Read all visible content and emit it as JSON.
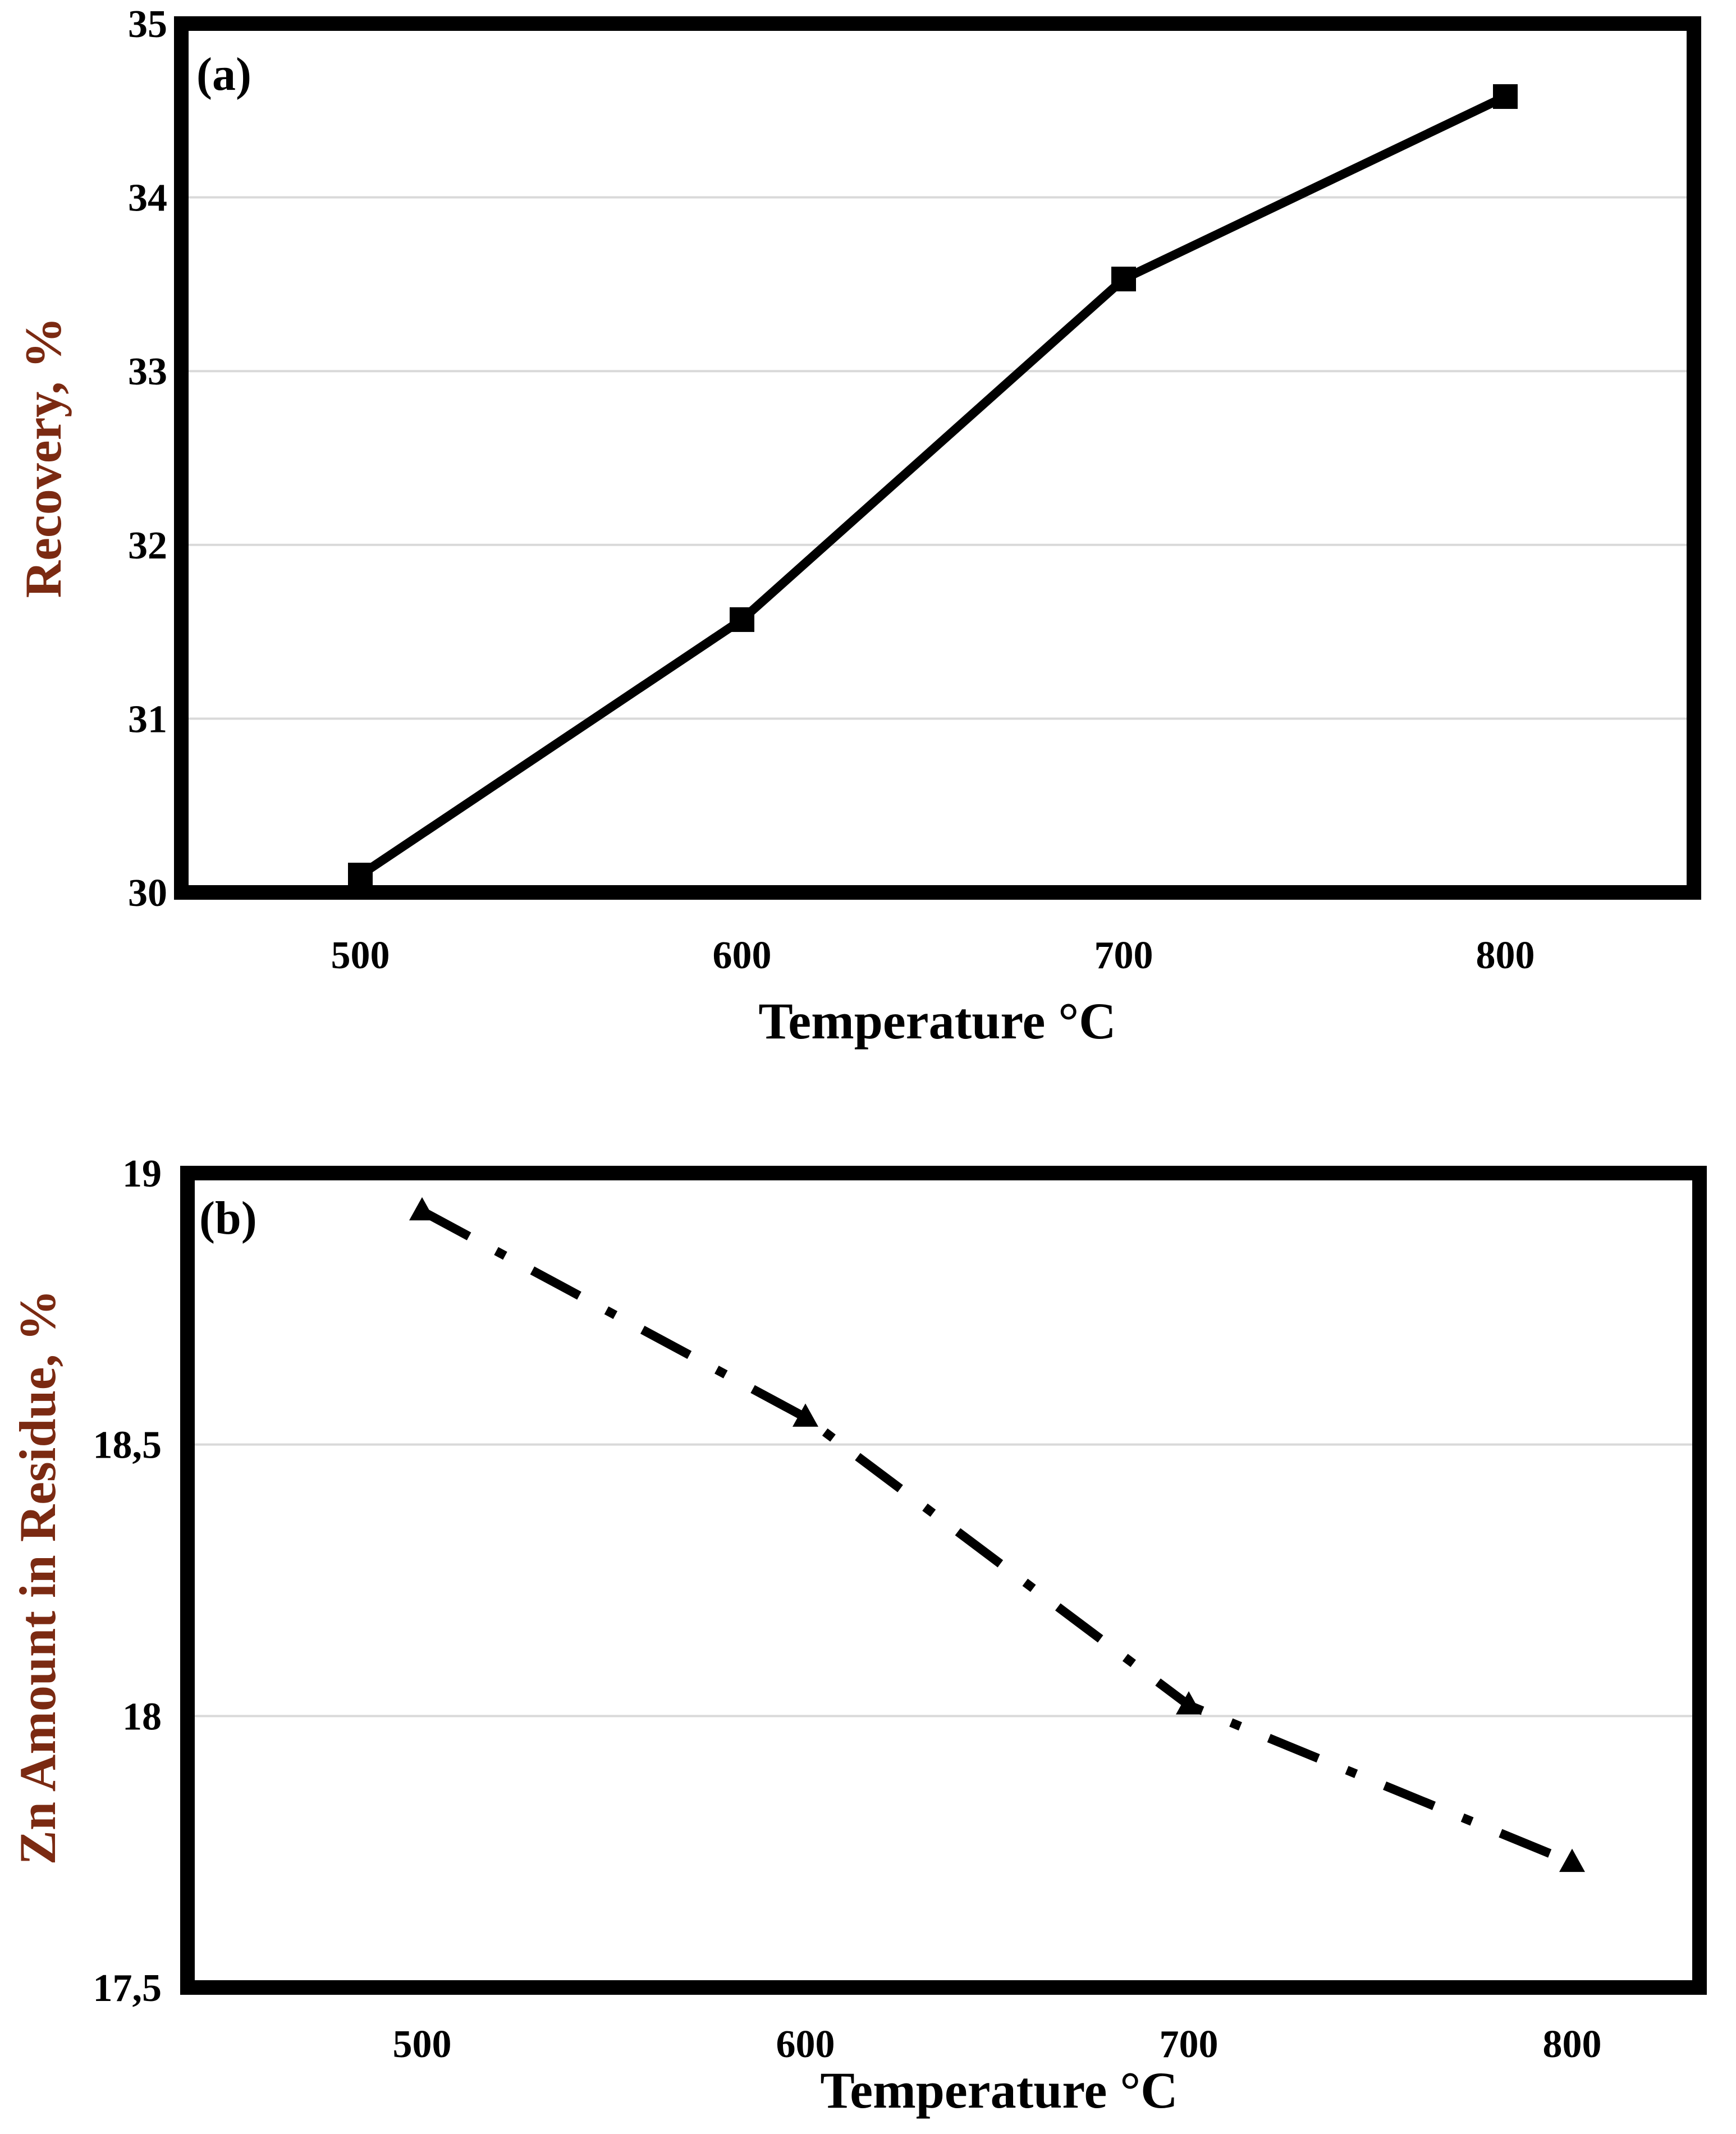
{
  "chart_data": [
    {
      "type": "line",
      "panel_label": "(a)",
      "title": "",
      "xlabel": "Temperature °C",
      "ylabel": "Recovery, %",
      "x": [
        500,
        600,
        700,
        800
      ],
      "categories": [
        "500",
        "600",
        "700",
        "800"
      ],
      "series": [
        {
          "name": "Recovery",
          "values": [
            30.1,
            31.57,
            33.53,
            34.58
          ],
          "marker": "square",
          "line_style": "solid"
        }
      ],
      "ylim": [
        30,
        35
      ],
      "yticks": [
        "30",
        "31",
        "32",
        "33",
        "34",
        "35"
      ],
      "grid": true,
      "colors": {
        "axis_label": "#7b2a12",
        "line": "#000000",
        "grid": "#d9d9d9"
      }
    },
    {
      "type": "line",
      "panel_label": "(b)",
      "title": "",
      "xlabel": "Temperature °C",
      "ylabel": "Zn Amount in Residue, %",
      "x": [
        500,
        600,
        700,
        800
      ],
      "categories": [
        "500",
        "600",
        "700",
        "800"
      ],
      "series": [
        {
          "name": "Zn Amount in Residue",
          "values": [
            18.93,
            18.55,
            18.02,
            17.73
          ],
          "marker": "triangle",
          "line_style": "dash-dot"
        }
      ],
      "ylim": [
        17.5,
        19
      ],
      "yticks": [
        "17,5",
        "18",
        "18,5",
        "19"
      ],
      "grid": true,
      "colors": {
        "axis_label": "#7b2a12",
        "line": "#000000",
        "grid": "#d9d9d9"
      }
    }
  ]
}
